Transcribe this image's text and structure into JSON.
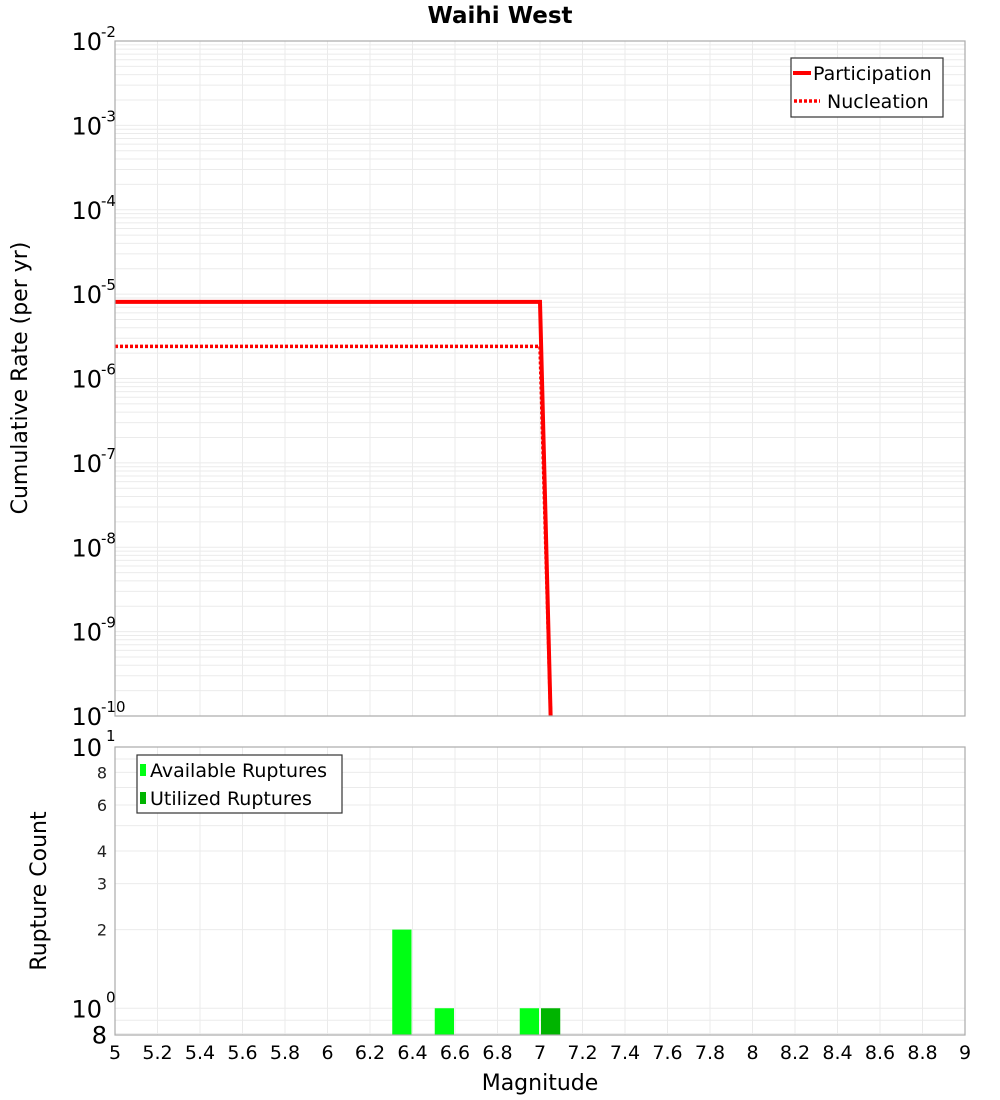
{
  "title": "Waihi West",
  "colors": {
    "participation": "#ff0000",
    "nucleation": "#ff0000",
    "available": "#00ff14",
    "utilized": "#00b400",
    "grid": "#ebebeb",
    "plot_border": "#aaaaaa",
    "legend_border": "#333333"
  },
  "chart_data": [
    {
      "type": "line",
      "title": "Waihi West",
      "xlabel": "Magnitude",
      "ylabel": "Cumulative Rate (per yr)",
      "xlim": [
        5,
        9
      ],
      "ylim": [
        1e-10,
        0.01
      ],
      "yscale": "log",
      "grid": true,
      "legend_position": "upper right",
      "y_tick_labels": [
        {
          "base": "10",
          "exp": "-2"
        },
        {
          "base": "10",
          "exp": "-3"
        },
        {
          "base": "10",
          "exp": "-4"
        },
        {
          "base": "10",
          "exp": "-5"
        },
        {
          "base": "10",
          "exp": "-6"
        },
        {
          "base": "10",
          "exp": "-7"
        },
        {
          "base": "10",
          "exp": "-8"
        },
        {
          "base": "10",
          "exp": "-9"
        },
        {
          "base": "10",
          "exp": "-10"
        }
      ],
      "series": [
        {
          "name": "Participation",
          "style": "solid",
          "x": [
            5.0,
            7.0,
            7.05
          ],
          "y": [
            8.1e-06,
            8.1e-06,
            1e-10
          ]
        },
        {
          "name": "Nucleation",
          "style": "dotted",
          "x": [
            5.0,
            7.0,
            7.05
          ],
          "y": [
            2.4e-06,
            2.4e-06,
            1e-10
          ]
        }
      ]
    },
    {
      "type": "bar",
      "xlabel": "Magnitude",
      "ylabel": "Rupture Count",
      "xlim": [
        5,
        9
      ],
      "ylim": [
        0.79,
        10
      ],
      "yscale": "log",
      "grid": true,
      "legend_position": "upper left",
      "x_tick_labels": [
        "5",
        "5.2",
        "5.4",
        "5.6",
        "5.8",
        "6",
        "6.2",
        "6.4",
        "6.6",
        "6.8",
        "7",
        "7.2",
        "7.4",
        "7.6",
        "7.8",
        "8",
        "8.2",
        "8.4",
        "8.6",
        "8.8",
        "9"
      ],
      "y_tick_labels": [
        {
          "value": 10,
          "base": "10",
          "exp": "1",
          "major": true
        },
        {
          "value": 8,
          "label": "8"
        },
        {
          "value": 6,
          "label": "6"
        },
        {
          "value": 4,
          "label": "4"
        },
        {
          "value": 3,
          "label": "3"
        },
        {
          "value": 2,
          "label": "2"
        },
        {
          "value": 1,
          "base": "10",
          "exp": "0",
          "major": true
        },
        {
          "value": 0.8,
          "label": "8",
          "major_style": true
        }
      ],
      "bin_width": 0.1,
      "series": [
        {
          "name": "Available Ruptures",
          "categories": [
            6.35,
            6.55,
            6.95
          ],
          "values": [
            2,
            1,
            1
          ]
        },
        {
          "name": "Utilized Ruptures",
          "categories": [
            7.05
          ],
          "values": [
            1
          ]
        }
      ]
    }
  ]
}
